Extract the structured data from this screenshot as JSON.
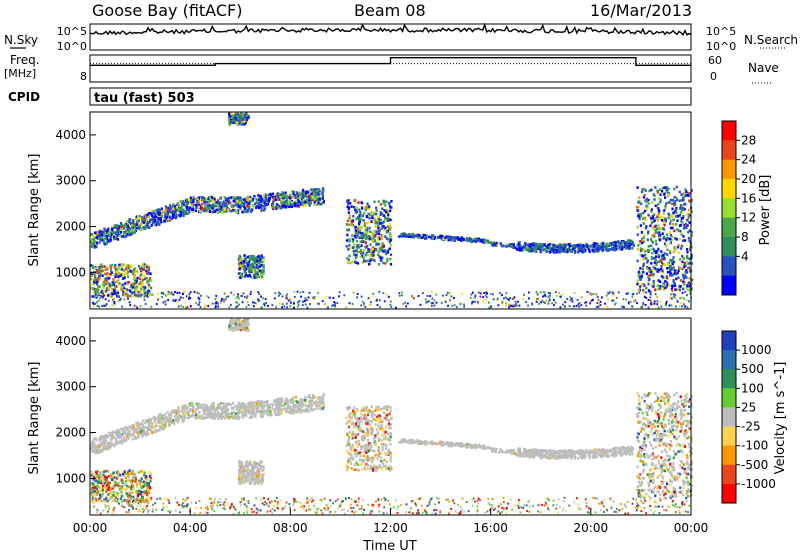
{
  "header": {
    "station": "Goose Bay (fitACF)",
    "beam": "Beam 08",
    "date": "16/Mar/2013",
    "cpid_label": "CPID",
    "cpid_value": "tau (fast) 503"
  },
  "strips": {
    "nsky_label": "N.Sky",
    "nsearch_label": "N.Search",
    "freq_label": "Freq.",
    "freq_unit": "[MHz]",
    "nave_label": "Nave",
    "nsky_ticks": [
      "10^5",
      "10^0"
    ],
    "nsearch_ticks": [
      "10^5",
      "10^0"
    ],
    "freq_ticks": [
      "",
      "8"
    ],
    "nave_ticks": [
      "60",
      "0"
    ],
    "freq_levels": [
      {
        "from_hour": 0.0,
        "to_hour": 5.0,
        "level": 0.62
      },
      {
        "from_hour": 5.0,
        "to_hour": 12.0,
        "level": 0.68
      },
      {
        "from_hour": 12.0,
        "to_hour": 21.8,
        "level": 0.9
      },
      {
        "from_hour": 21.8,
        "to_hour": 24.0,
        "level": 0.62
      }
    ],
    "nave_level": 0.68
  },
  "chart_data": [
    {
      "type": "heatmap",
      "name": "power",
      "ylabel": "Slant Range [km]",
      "xlabel": "",
      "xlim": [
        0,
        24
      ],
      "ylim": [
        200,
        4500
      ],
      "y_ticks": [
        1000,
        2000,
        3000,
        4000
      ],
      "colorbar": {
        "label": "Power [dB]",
        "ticks": [
          "28",
          "24",
          "20",
          "16",
          "12",
          "8",
          "4"
        ],
        "colors": [
          "#ff0000",
          "#e8461a",
          "#ff9900",
          "#ffd700",
          "#99dd33",
          "#4aa84a",
          "#2f8f5a",
          "#2a52be",
          "#0000ff"
        ]
      },
      "features": [
        {
          "desc": "arc",
          "x": [
            0.2,
            1.0,
            2.5,
            4.5,
            6.0,
            7.5,
            9.0
          ],
          "y": [
            1600,
            1900,
            2300,
            2550,
            2500,
            2750,
            2650
          ]
        },
        {
          "desc": "steady band",
          "x": [
            12.5,
            16.0,
            19.0,
            21.5
          ],
          "y": [
            1850,
            1700,
            1550,
            1650
          ]
        }
      ]
    },
    {
      "type": "heatmap",
      "name": "velocity",
      "ylabel": "Slant Range [km]",
      "xlabel": "Time UT",
      "xlim": [
        0,
        24
      ],
      "ylim": [
        200,
        4500
      ],
      "x_ticks": [
        "00:00",
        "04:00",
        "08:00",
        "12:00",
        "16:00",
        "20:00",
        "00:00"
      ],
      "y_ticks": [
        1000,
        2000,
        3000,
        4000
      ],
      "colorbar": {
        "label": "Velocity [m s^-1]",
        "ticks": [
          "1000",
          "500",
          "100",
          "25",
          "-25",
          "-100",
          "-500",
          "-1000"
        ],
        "colors": [
          "#1f3fbf",
          "#2a6fb0",
          "#2f8f5a",
          "#66cc33",
          "#bdbdbd",
          "#ffd24d",
          "#ff9900",
          "#e8461a",
          "#ff0000"
        ]
      }
    }
  ]
}
